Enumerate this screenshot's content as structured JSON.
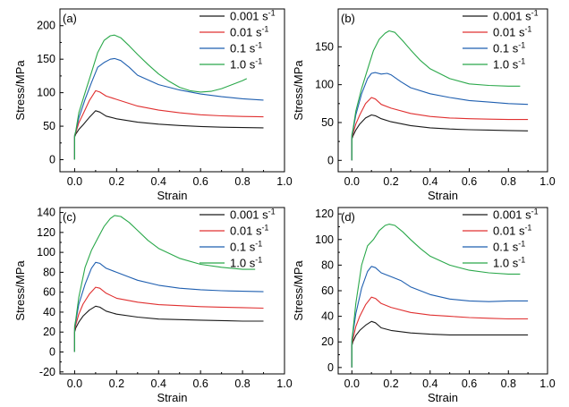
{
  "chart_data": [
    {
      "type": "line",
      "panel_label": "(a)",
      "xlabel": "Strain",
      "ylabel": "Stress/MPa",
      "xlim": [
        -0.07,
        1.0
      ],
      "ylim": [
        -18,
        225
      ],
      "xticks": [
        0.0,
        0.2,
        0.4,
        0.6,
        0.8,
        1.0
      ],
      "xtick_labels": [
        "0.0",
        "0.2",
        "0.4",
        "0.6",
        "0.8",
        "1.0"
      ],
      "yticks": [
        0,
        50,
        100,
        150,
        200
      ],
      "ytick_labels": [
        "0",
        "50",
        "100",
        "150",
        "200"
      ],
      "legend_position": "top-right",
      "series": [
        {
          "name": "0.001",
          "unit": "s",
          "exponent": "-1",
          "color": "#1a1a1a",
          "x": [
            0.0,
            0.0,
            0.005,
            0.02,
            0.04,
            0.07,
            0.1,
            0.12,
            0.15,
            0.2,
            0.3,
            0.4,
            0.5,
            0.6,
            0.7,
            0.8,
            0.9
          ],
          "y": [
            0,
            34,
            38,
            45,
            52,
            63,
            73,
            71,
            65,
            61,
            56,
            53,
            51,
            49.5,
            48.5,
            48,
            47.5
          ]
        },
        {
          "name": "0.01",
          "unit": "s",
          "exponent": "-1",
          "color": "#e03030",
          "x": [
            0.0,
            0.0,
            0.005,
            0.02,
            0.04,
            0.07,
            0.1,
            0.12,
            0.15,
            0.2,
            0.3,
            0.4,
            0.5,
            0.6,
            0.7,
            0.8,
            0.9
          ],
          "y": [
            0,
            36,
            40,
            55,
            68,
            88,
            103,
            101,
            95,
            90,
            80,
            74,
            70,
            67,
            65.5,
            64.5,
            64
          ]
        },
        {
          "name": "0.1",
          "unit": "s",
          "exponent": "-1",
          "color": "#1f5fb0",
          "x": [
            0.0,
            0.0,
            0.005,
            0.02,
            0.05,
            0.08,
            0.11,
            0.14,
            0.17,
            0.19,
            0.22,
            0.26,
            0.3,
            0.4,
            0.5,
            0.6,
            0.7,
            0.8,
            0.9
          ],
          "y": [
            0,
            36,
            42,
            62,
            90,
            115,
            138,
            145,
            150,
            151,
            148,
            138,
            126,
            112,
            104,
            98,
            94,
            91,
            89
          ]
        },
        {
          "name": "1.0",
          "unit": "s",
          "exponent": "-1",
          "color": "#2aa84a",
          "x": [
            0.0,
            0.0,
            0.005,
            0.02,
            0.05,
            0.08,
            0.11,
            0.14,
            0.17,
            0.19,
            0.22,
            0.26,
            0.3,
            0.35,
            0.4,
            0.45,
            0.5,
            0.55,
            0.6,
            0.65,
            0.7,
            0.75,
            0.8,
            0.82
          ],
          "y": [
            0,
            36,
            42,
            70,
            100,
            130,
            160,
            178,
            185,
            186,
            182,
            170,
            157,
            142,
            128,
            117,
            108,
            103,
            101,
            102,
            106,
            112,
            118,
            121
          ]
        }
      ]
    },
    {
      "type": "line",
      "panel_label": "(b)",
      "xlabel": "Strain",
      "ylabel": "Stress/MPa",
      "xlim": [
        -0.07,
        1.0
      ],
      "ylim": [
        -15,
        200
      ],
      "xticks": [
        0.0,
        0.2,
        0.4,
        0.6,
        0.8,
        1.0
      ],
      "xtick_labels": [
        "0.0",
        "0.2",
        "0.4",
        "0.6",
        "0.8",
        "1.0"
      ],
      "yticks": [
        0,
        50,
        100,
        150
      ],
      "ytick_labels": [
        "0",
        "50",
        "100",
        "150"
      ],
      "legend_position": "top-right",
      "series": [
        {
          "name": "0.001",
          "unit": "s",
          "exponent": "-1",
          "color": "#1a1a1a",
          "x": [
            0.0,
            0.0,
            0.005,
            0.02,
            0.04,
            0.07,
            0.1,
            0.12,
            0.15,
            0.2,
            0.3,
            0.4,
            0.5,
            0.6,
            0.7,
            0.8,
            0.9
          ],
          "y": [
            0,
            28,
            32,
            40,
            48,
            56,
            60,
            59,
            55,
            51,
            46,
            43,
            41.5,
            40.5,
            40,
            39.5,
            39
          ]
        },
        {
          "name": "0.01",
          "unit": "s",
          "exponent": "-1",
          "color": "#e03030",
          "x": [
            0.0,
            0.0,
            0.005,
            0.02,
            0.04,
            0.07,
            0.1,
            0.12,
            0.15,
            0.2,
            0.3,
            0.4,
            0.5,
            0.6,
            0.7,
            0.8,
            0.9
          ],
          "y": [
            0,
            30,
            35,
            48,
            60,
            75,
            83,
            81,
            74,
            69,
            62,
            58,
            56,
            55,
            54.5,
            54,
            54
          ]
        },
        {
          "name": "0.1",
          "unit": "s",
          "exponent": "-1",
          "color": "#1f5fb0",
          "x": [
            0.0,
            0.0,
            0.005,
            0.02,
            0.05,
            0.08,
            0.1,
            0.12,
            0.15,
            0.18,
            0.2,
            0.25,
            0.3,
            0.4,
            0.5,
            0.6,
            0.7,
            0.8,
            0.9
          ],
          "y": [
            0,
            32,
            38,
            60,
            88,
            108,
            115,
            116,
            114,
            115,
            113,
            104,
            96,
            88,
            83,
            79,
            77,
            75,
            74
          ]
        },
        {
          "name": "1.0",
          "unit": "s",
          "exponent": "-1",
          "color": "#2aa84a",
          "x": [
            0.0,
            0.0,
            0.005,
            0.02,
            0.05,
            0.08,
            0.11,
            0.14,
            0.17,
            0.19,
            0.22,
            0.26,
            0.3,
            0.35,
            0.4,
            0.5,
            0.6,
            0.7,
            0.8,
            0.86
          ],
          "y": [
            0,
            34,
            40,
            65,
            95,
            120,
            145,
            160,
            168,
            171,
            169,
            158,
            146,
            132,
            121,
            108,
            101,
            99,
            98,
            98
          ]
        }
      ]
    },
    {
      "type": "line",
      "panel_label": "(c)",
      "xlabel": "Strain",
      "ylabel": "Stress/MPa",
      "xlim": [
        -0.07,
        1.0
      ],
      "ylim": [
        -22,
        145
      ],
      "xticks": [
        0.0,
        0.2,
        0.4,
        0.6,
        0.8,
        1.0
      ],
      "xtick_labels": [
        "0.0",
        "0.2",
        "0.4",
        "0.6",
        "0.8",
        "1.0"
      ],
      "yticks": [
        -20,
        0,
        20,
        40,
        60,
        80,
        100,
        120,
        140
      ],
      "ytick_labels": [
        "-20",
        "0",
        "20",
        "40",
        "60",
        "80",
        "100",
        "120",
        "140"
      ],
      "legend_position": "top-right",
      "series": [
        {
          "name": "0.001",
          "unit": "s",
          "exponent": "-1",
          "color": "#1a1a1a",
          "x": [
            0.0,
            0.0,
            0.005,
            0.02,
            0.04,
            0.07,
            0.1,
            0.12,
            0.15,
            0.2,
            0.3,
            0.4,
            0.5,
            0.6,
            0.7,
            0.8,
            0.9
          ],
          "y": [
            0,
            20,
            24,
            30,
            36,
            42,
            46,
            45,
            41,
            38,
            35,
            33,
            32.5,
            32,
            31.5,
            31,
            31
          ]
        },
        {
          "name": "0.01",
          "unit": "s",
          "exponent": "-1",
          "color": "#e03030",
          "x": [
            0.0,
            0.0,
            0.005,
            0.02,
            0.04,
            0.07,
            0.1,
            0.12,
            0.15,
            0.2,
            0.3,
            0.4,
            0.5,
            0.6,
            0.7,
            0.8,
            0.9
          ],
          "y": [
            0,
            22,
            27,
            38,
            48,
            58,
            65,
            64,
            59,
            54,
            50,
            47.5,
            46.5,
            45.5,
            45,
            44.5,
            44
          ]
        },
        {
          "name": "0.1",
          "unit": "s",
          "exponent": "-1",
          "color": "#1f5fb0",
          "x": [
            0.0,
            0.0,
            0.005,
            0.02,
            0.05,
            0.08,
            0.1,
            0.12,
            0.15,
            0.2,
            0.25,
            0.3,
            0.4,
            0.5,
            0.6,
            0.7,
            0.8,
            0.9
          ],
          "y": [
            0,
            24,
            30,
            48,
            68,
            84,
            90,
            89,
            84,
            80,
            76,
            72,
            67,
            64,
            62.5,
            61.5,
            61,
            60.5
          ]
        },
        {
          "name": "1.0",
          "unit": "s",
          "exponent": "-1",
          "color": "#2aa84a",
          "x": [
            0.0,
            0.0,
            0.005,
            0.02,
            0.05,
            0.08,
            0.11,
            0.14,
            0.17,
            0.19,
            0.22,
            0.26,
            0.3,
            0.35,
            0.4,
            0.5,
            0.6,
            0.7,
            0.8,
            0.86
          ],
          "y": [
            0,
            26,
            32,
            55,
            85,
            102,
            114,
            126,
            134,
            137,
            136,
            130,
            122,
            112,
            104,
            94,
            88,
            85,
            83,
            83
          ]
        }
      ]
    },
    {
      "type": "line",
      "panel_label": "(d)",
      "xlabel": "Strain",
      "ylabel": "Stress/MPa",
      "xlim": [
        -0.07,
        1.0
      ],
      "ylim": [
        -5,
        125
      ],
      "xticks": [
        0.0,
        0.2,
        0.4,
        0.6,
        0.8,
        1.0
      ],
      "xtick_labels": [
        "0.0",
        "0.2",
        "0.4",
        "0.6",
        "0.8",
        "1.0"
      ],
      "yticks": [
        0,
        20,
        40,
        60,
        80,
        100,
        120
      ],
      "ytick_labels": [
        "0",
        "20",
        "40",
        "60",
        "80",
        "100",
        "120"
      ],
      "legend_position": "top-right",
      "series": [
        {
          "name": "0.001",
          "unit": "s",
          "exponent": "-1",
          "color": "#1a1a1a",
          "x": [
            0.0,
            0.0,
            0.005,
            0.02,
            0.04,
            0.07,
            0.1,
            0.12,
            0.15,
            0.2,
            0.3,
            0.4,
            0.5,
            0.6,
            0.7,
            0.8,
            0.9
          ],
          "y": [
            0,
            17,
            20,
            25,
            29,
            33,
            36,
            35,
            31,
            29,
            27,
            26,
            25.5,
            25.5,
            25.5,
            25.5,
            25.5
          ]
        },
        {
          "name": "0.01",
          "unit": "s",
          "exponent": "-1",
          "color": "#e03030",
          "x": [
            0.0,
            0.0,
            0.005,
            0.02,
            0.04,
            0.07,
            0.1,
            0.12,
            0.15,
            0.2,
            0.3,
            0.4,
            0.5,
            0.6,
            0.7,
            0.8,
            0.9
          ],
          "y": [
            0,
            18,
            22,
            32,
            40,
            49,
            55,
            54,
            50,
            47,
            43,
            41,
            40,
            39,
            38.5,
            38,
            38
          ]
        },
        {
          "name": "0.1",
          "unit": "s",
          "exponent": "-1",
          "color": "#1f5fb0",
          "x": [
            0.0,
            0.0,
            0.005,
            0.02,
            0.05,
            0.08,
            0.1,
            0.12,
            0.15,
            0.2,
            0.25,
            0.3,
            0.4,
            0.5,
            0.6,
            0.7,
            0.8,
            0.9
          ],
          "y": [
            0,
            20,
            26,
            42,
            62,
            75,
            79,
            78,
            74,
            71,
            68,
            63,
            57,
            53.5,
            52,
            51.5,
            52,
            52
          ]
        },
        {
          "name": "1.0",
          "unit": "s",
          "exponent": "-1",
          "color": "#2aa84a",
          "x": [
            0.0,
            0.0,
            0.005,
            0.02,
            0.05,
            0.08,
            0.11,
            0.14,
            0.17,
            0.19,
            0.22,
            0.26,
            0.3,
            0.35,
            0.4,
            0.5,
            0.6,
            0.7,
            0.8,
            0.86
          ],
          "y": [
            0,
            22,
            28,
            50,
            80,
            95,
            100,
            107,
            111,
            112,
            111,
            106,
            100,
            93,
            87,
            80,
            76,
            74,
            73,
            73
          ]
        }
      ]
    }
  ]
}
